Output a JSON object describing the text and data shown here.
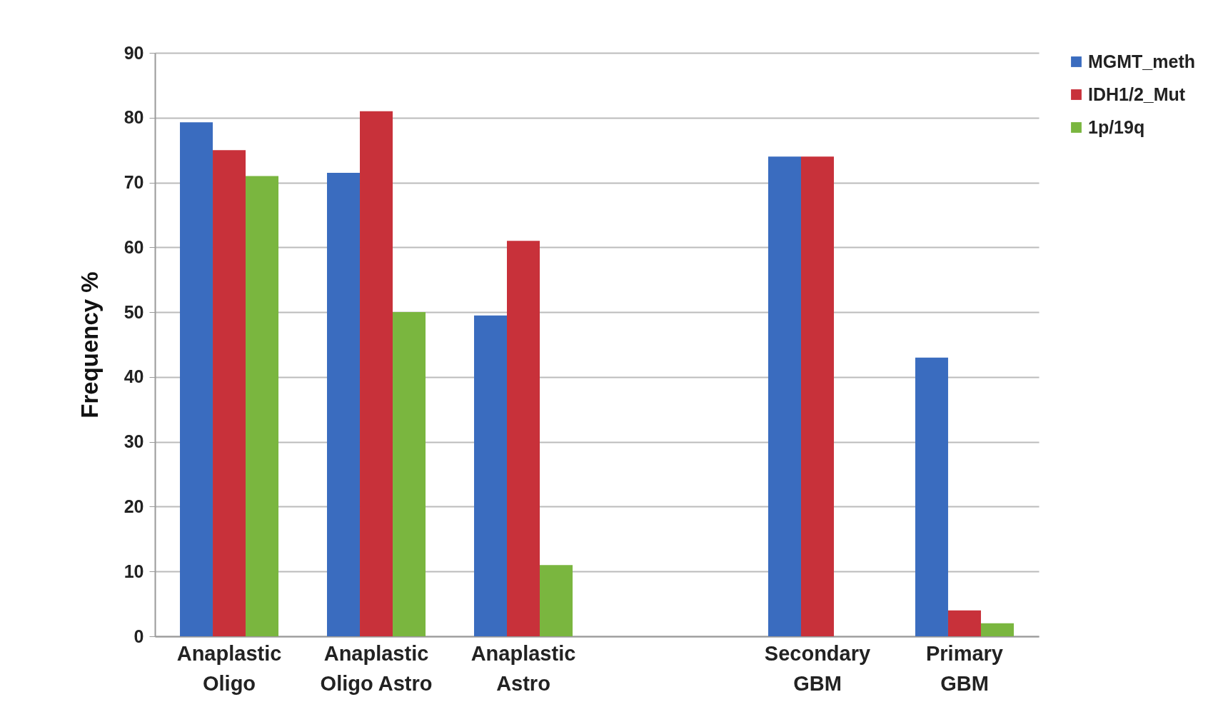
{
  "chart_data": {
    "type": "bar",
    "ylabel": "Frequency  %",
    "categories": [
      "Anaplastic Oligo",
      "Anaplastic Oligo Astro",
      "Anaplastic Astro",
      null,
      "Secondary GBM",
      "Primary GBM"
    ],
    "series": [
      {
        "name": "MGMT_meth",
        "color": "#3a6cbf",
        "values": [
          79.3,
          71.5,
          49.5,
          null,
          74,
          43
        ]
      },
      {
        "name": "IDH1/2_Mut",
        "color": "#c8313a",
        "values": [
          75,
          81,
          61,
          null,
          74,
          4
        ]
      },
      {
        "name": "1p/19q",
        "color": "#7ab63f",
        "values": [
          71,
          50,
          11,
          null,
          null,
          2
        ]
      }
    ],
    "ylim": [
      0,
      90
    ],
    "yticks": [
      0,
      10,
      20,
      30,
      40,
      50,
      60,
      70,
      80,
      90
    ],
    "grid": "y",
    "legend": "right"
  }
}
